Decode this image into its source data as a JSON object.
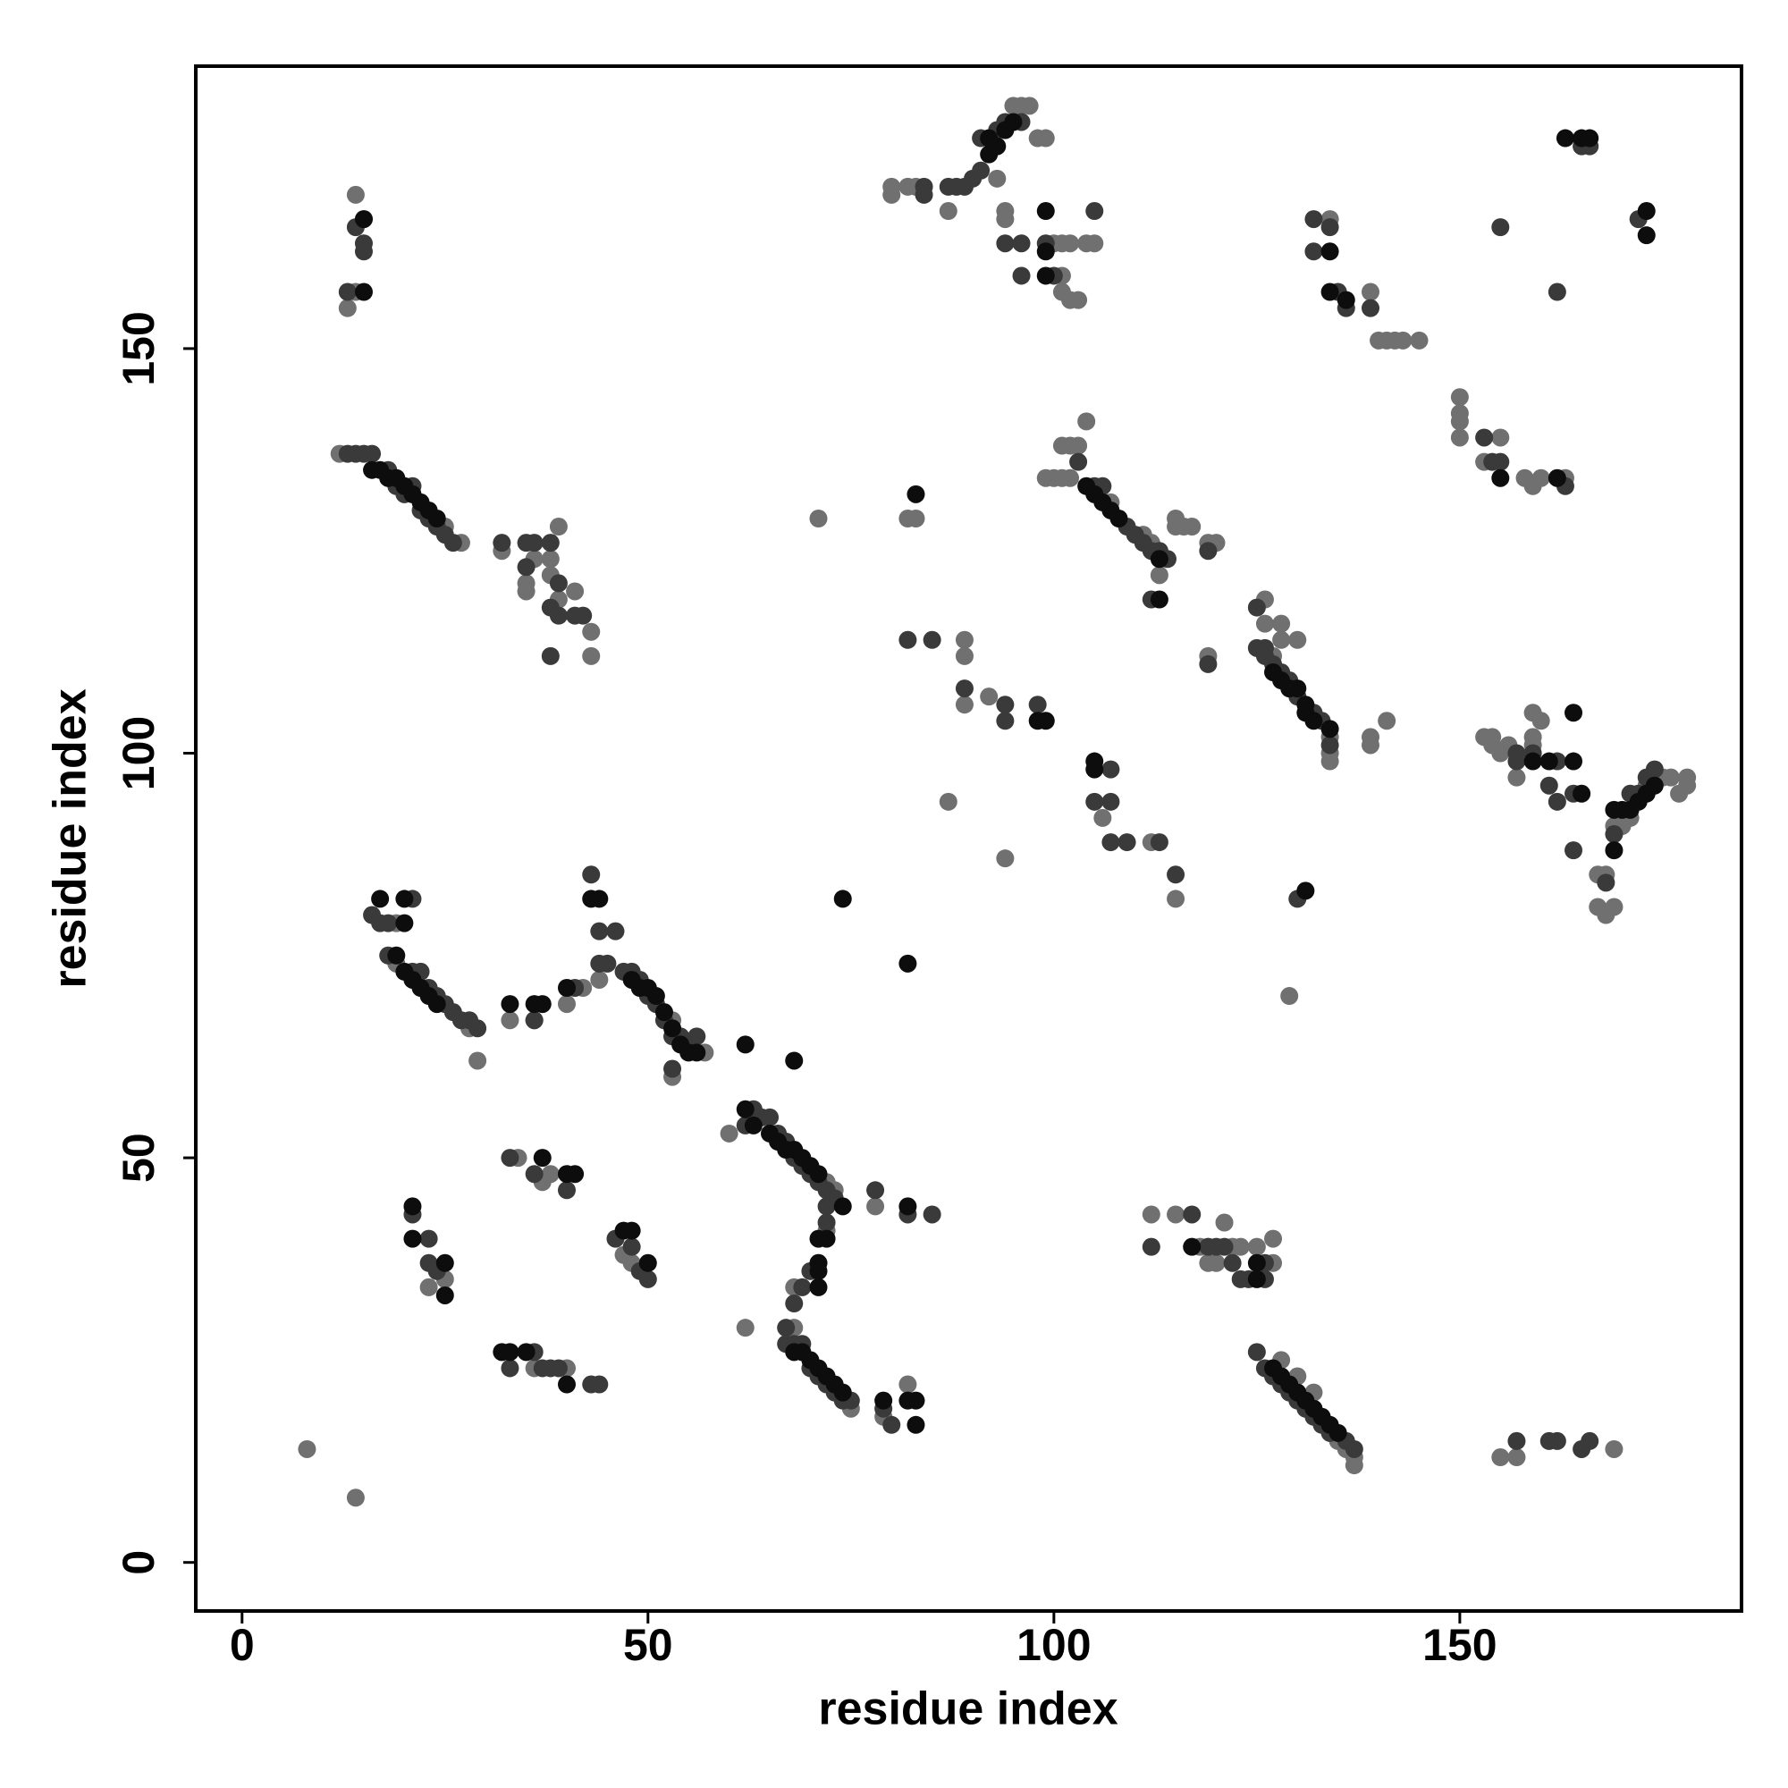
{
  "chart_data": {
    "type": "scatter",
    "x_label": "residue index",
    "y_label": "residue index",
    "xlim": [
      -5.7,
      184.7
    ],
    "ylim": [
      -6,
      184.9
    ],
    "xticks": [
      0,
      50,
      100,
      150
    ],
    "yticks": [
      0,
      50,
      100,
      150
    ],
    "series": [
      {
        "color": "#707070",
        "x": [
          12,
          25,
          27,
          14,
          15,
          13,
          14,
          32,
          36,
          35,
          35,
          39,
          38,
          38,
          39,
          41,
          43,
          43,
          19,
          19,
          28,
          29,
          33,
          36,
          40,
          44,
          42,
          53,
          57,
          53,
          60,
          67,
          73,
          72,
          71,
          68,
          62,
          68,
          75,
          72,
          79,
          82,
          78,
          23,
          25,
          8,
          14,
          36,
          33,
          40,
          34,
          37,
          38,
          47,
          48,
          71,
          87,
          94,
          129,
          82,
          80,
          80,
          82,
          83,
          87,
          95,
          96,
          97,
          98,
          99,
          93,
          94,
          94,
          100,
          101,
          102,
          101,
          101,
          102,
          103,
          104,
          105,
          99,
          100,
          101,
          102,
          101,
          102,
          103,
          104,
          107,
          111,
          112,
          115,
          115,
          116,
          117,
          119,
          120,
          113,
          126,
          126,
          127,
          128,
          128,
          130,
          134,
          134,
          134,
          119,
          139,
          141,
          139,
          89,
          89,
          89,
          92,
          106,
          112,
          115,
          83,
          112,
          115,
          118,
          119,
          120,
          121,
          122,
          123,
          125,
          127,
          127,
          128,
          130,
          132,
          137,
          137,
          136,
          135,
          134,
          139,
          140,
          141,
          142,
          143,
          145,
          150,
          150,
          150,
          150,
          155,
          153,
          158,
          159,
          160,
          163,
          153,
          154,
          154,
          155,
          156,
          157,
          159,
          159,
          159,
          160,
          167,
          167,
          168,
          168,
          169,
          169,
          170,
          171,
          173,
          175,
          176,
          178,
          178,
          177,
          155,
          157,
          169
        ],
        "values": [
          137,
          128,
          126,
          169,
          166,
          155,
          157,
          125,
          124,
          121,
          120,
          128,
          124,
          122,
          119,
          120,
          115,
          112,
          79,
          74,
          66,
          62,
          67,
          67,
          69,
          72,
          71,
          67,
          63,
          60,
          53,
          52,
          46,
          41,
          37,
          34,
          29,
          29,
          19,
          47,
          18,
          22,
          44,
          34,
          35,
          14,
          8,
          24,
          26,
          24,
          50,
          47,
          48,
          38,
          37,
          129,
          94,
          87,
          70,
          129,
          170,
          169,
          170,
          170,
          167,
          180,
          180,
          180,
          176,
          176,
          171,
          167,
          166,
          163,
          163,
          163,
          159,
          157,
          156,
          156,
          163,
          163,
          134,
          134,
          134,
          134,
          138,
          138,
          138,
          141,
          131,
          127,
          126,
          128,
          129,
          128,
          128,
          126,
          126,
          122,
          119,
          116,
          112,
          116,
          114,
          114,
          102,
          100,
          99,
          112,
          101,
          104,
          102,
          114,
          112,
          106,
          107,
          92,
          89,
          82,
          129,
          43,
          43,
          39,
          37,
          37,
          42,
          39,
          39,
          39,
          40,
          37,
          25,
          23,
          21,
          13,
          12,
          14,
          15,
          166,
          157,
          151,
          151,
          151,
          151,
          151,
          144,
          142,
          141,
          139,
          139,
          136,
          134,
          133,
          134,
          134,
          102,
          102,
          101,
          100,
          101,
          97,
          102,
          101,
          105,
          104,
          85,
          81,
          85,
          80,
          81,
          91,
          91,
          92,
          96,
          97,
          97,
          97,
          96,
          95,
          13,
          13,
          14
        ]
      },
      {
        "color": "#3a3a3a",
        "x": [
          13,
          14,
          15,
          16,
          18,
          19,
          20,
          21,
          22,
          23,
          24,
          25,
          26,
          14,
          15,
          15,
          13,
          32,
          35,
          36,
          35,
          38,
          39,
          38,
          41,
          42,
          38,
          39,
          16,
          17,
          18,
          21,
          18,
          21,
          22,
          23,
          24,
          25,
          26,
          27,
          28,
          29,
          36,
          41,
          43,
          44,
          46,
          44,
          45,
          47,
          48,
          49,
          50,
          51,
          52,
          53,
          54,
          55,
          56,
          53,
          63,
          62,
          64,
          65,
          66,
          67,
          68,
          69,
          70,
          71,
          72,
          73,
          72,
          72,
          70,
          69,
          68,
          67,
          67,
          68,
          69,
          70,
          71,
          72,
          73,
          74,
          75,
          79,
          80,
          78,
          82,
          85,
          21,
          23,
          23,
          24,
          33,
          36,
          37,
          38,
          39,
          43,
          44,
          33,
          36,
          40,
          46,
          48,
          50,
          49,
          84,
          84,
          87,
          88,
          89,
          90,
          91,
          93,
          94,
          96,
          91,
          94,
          96,
          96,
          100,
          105,
          99,
          103,
          105,
          106,
          109,
          110,
          111,
          112,
          113,
          114,
          119,
          112,
          125,
          125,
          126,
          126,
          127,
          128,
          129,
          130,
          132,
          133,
          134,
          119,
          82,
          85,
          89,
          94,
          94,
          98,
          105,
          107,
          107,
          107,
          109,
          113,
          115,
          130,
          112,
          117,
          119,
          120,
          122,
          123,
          124,
          126,
          126,
          121,
          125,
          126,
          127,
          128,
          129,
          130,
          131,
          132,
          133,
          134,
          136,
          137,
          132,
          134,
          132,
          135,
          136,
          139,
          153,
          154,
          155,
          163,
          166,
          165,
          155,
          162,
          172,
          157,
          157,
          159,
          161,
          162,
          162,
          164,
          164,
          168,
          169,
          171,
          173,
          174,
          172,
          157,
          161,
          162,
          165,
          166
        ],
        "values": [
          137,
          137,
          137,
          137,
          135,
          133,
          132,
          133,
          130,
          129,
          128,
          127,
          126,
          165,
          163,
          162,
          157,
          126,
          126,
          126,
          123,
          126,
          121,
          118,
          117,
          117,
          112,
          117,
          80,
          79,
          79,
          82,
          75,
          73,
          73,
          71,
          70,
          69,
          68,
          67,
          67,
          66,
          67,
          71,
          85,
          78,
          78,
          74,
          74,
          73,
          73,
          72,
          70,
          69,
          67,
          65,
          65,
          64,
          65,
          61,
          56,
          54,
          55,
          55,
          53,
          52,
          50,
          49,
          48,
          47,
          46,
          45,
          44,
          42,
          36,
          34,
          32,
          29,
          27,
          27,
          27,
          24,
          23,
          22,
          21,
          20,
          20,
          19,
          17,
          46,
          43,
          43,
          43,
          40,
          37,
          36,
          24,
          26,
          24,
          24,
          24,
          22,
          22,
          50,
          48,
          46,
          40,
          39,
          35,
          36,
          170,
          169,
          170,
          170,
          170,
          171,
          176,
          177,
          178,
          178,
          172,
          163,
          159,
          163,
          159,
          167,
          163,
          136,
          133,
          133,
          128,
          127,
          126,
          125,
          125,
          124,
          125,
          119,
          118,
          113,
          113,
          112,
          111,
          110,
          109,
          107,
          105,
          104,
          101,
          111,
          114,
          114,
          108,
          106,
          104,
          106,
          94,
          94,
          98,
          89,
          89,
          89,
          85,
          82,
          39,
          43,
          39,
          39,
          37,
          35,
          35,
          37,
          35,
          39,
          26,
          24,
          23,
          22,
          21,
          20,
          19,
          18,
          17,
          16,
          15,
          14,
          166,
          165,
          162,
          157,
          155,
          155,
          139,
          136,
          136,
          133,
          175,
          175,
          165,
          157,
          166,
          100,
          99,
          100,
          96,
          99,
          94,
          95,
          88,
          84,
          90,
          95,
          97,
          98,
          95,
          15,
          15,
          15,
          14,
          15
        ]
      },
      {
        "color": "#0d0d0d",
        "x": [
          16,
          17,
          18,
          19,
          20,
          21,
          22,
          23,
          24,
          15,
          15,
          17,
          20,
          20,
          19,
          20,
          21,
          22,
          23,
          24,
          33,
          36,
          37,
          40,
          43,
          44,
          48,
          49,
          50,
          51,
          52,
          53,
          54,
          55,
          56,
          62,
          63,
          65,
          66,
          67,
          68,
          69,
          70,
          71,
          74,
          71,
          72,
          71,
          71,
          71,
          68,
          69,
          70,
          71,
          72,
          73,
          74,
          62,
          68,
          79,
          82,
          83,
          83,
          82,
          21,
          21,
          25,
          25,
          32,
          33,
          35,
          40,
          37,
          40,
          41,
          47,
          48,
          50,
          74,
          82,
          92,
          93,
          94,
          95,
          92,
          99,
          99,
          99,
          104,
          105,
          106,
          107,
          108,
          113,
          113,
          127,
          128,
          129,
          130,
          131,
          131,
          132,
          134,
          83,
          98,
          99,
          105,
          105,
          131,
          125,
          125,
          117,
          127,
          128,
          129,
          130,
          131,
          132,
          133,
          134,
          135,
          134,
          134,
          136,
          155,
          162,
          163,
          165,
          166,
          173,
          173,
          159,
          161,
          164,
          165,
          169,
          169,
          170,
          171,
          172,
          173,
          174,
          164
        ],
        "values": [
          135,
          135,
          134,
          134,
          133,
          132,
          131,
          130,
          129,
          166,
          157,
          82,
          82,
          79,
          75,
          73,
          72,
          71,
          70,
          69,
          69,
          69,
          69,
          71,
          82,
          82,
          72,
          71,
          71,
          70,
          68,
          66,
          64,
          63,
          63,
          56,
          54,
          53,
          52,
          51,
          51,
          50,
          49,
          48,
          44,
          40,
          40,
          37,
          36,
          34,
          26,
          26,
          25,
          24,
          23,
          22,
          21,
          64,
          62,
          20,
          20,
          20,
          17,
          44,
          44,
          40,
          37,
          33,
          26,
          26,
          26,
          22,
          50,
          48,
          48,
          41,
          41,
          37,
          82,
          74,
          174,
          175,
          177,
          178,
          176,
          167,
          162,
          159,
          133,
          132,
          131,
          130,
          129,
          124,
          119,
          110,
          109,
          108,
          108,
          106,
          105,
          104,
          103,
          132,
          104,
          104,
          99,
          98,
          83,
          37,
          35,
          39,
          24,
          23,
          22,
          21,
          20,
          19,
          18,
          17,
          16,
          162,
          157,
          156,
          134,
          134,
          176,
          176,
          176,
          167,
          164,
          99,
          99,
          99,
          95,
          88,
          93,
          93,
          93,
          94,
          95,
          96,
          105
        ]
      }
    ]
  }
}
